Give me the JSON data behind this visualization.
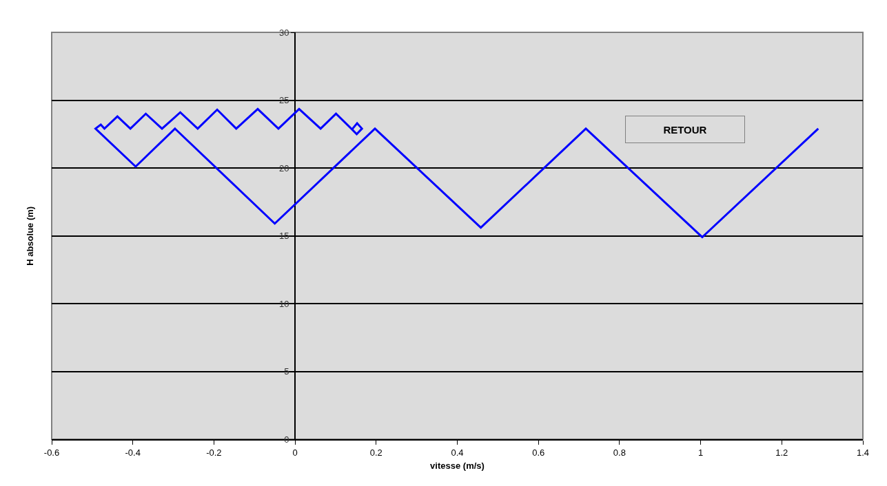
{
  "chart_data": {
    "type": "line",
    "xlabel": "vitesse (m/s)",
    "ylabel": "H absolue (m)",
    "x": [
      1.29,
      1.004,
      0.717,
      0.458,
      0.197,
      -0.05,
      -0.296,
      -0.393,
      -0.492,
      -0.479,
      -0.47,
      -0.438,
      -0.406,
      -0.368,
      -0.328,
      -0.283,
      -0.24,
      -0.192,
      -0.145,
      -0.092,
      -0.041,
      0.01,
      0.063,
      0.101,
      0.142,
      0.152,
      0.165,
      0.153,
      0.142
    ],
    "series": [
      {
        "color": "#0000ff",
        "values": [
          22.9,
          14.9,
          22.9,
          15.6,
          22.9,
          15.9,
          22.9,
          20.1,
          22.9,
          23.2,
          22.9,
          23.8,
          22.9,
          24.0,
          22.9,
          24.1,
          22.9,
          24.3,
          22.9,
          24.35,
          22.9,
          24.35,
          22.9,
          24.0,
          22.8,
          22.5,
          22.9,
          23.3,
          22.9
        ]
      }
    ],
    "xlim": [
      -0.6,
      1.4
    ],
    "xticks": [
      -0.6,
      -0.4,
      -0.2,
      0,
      0.2,
      0.4,
      0.6,
      0.8,
      1,
      1.2,
      1.4
    ],
    "ylim": [
      0,
      30
    ],
    "yticks": [
      0,
      5,
      10,
      15,
      20,
      25,
      30
    ],
    "grid": "y",
    "marker": "none",
    "line_style": "solid",
    "annotations": [
      "RETOUR"
    ]
  }
}
